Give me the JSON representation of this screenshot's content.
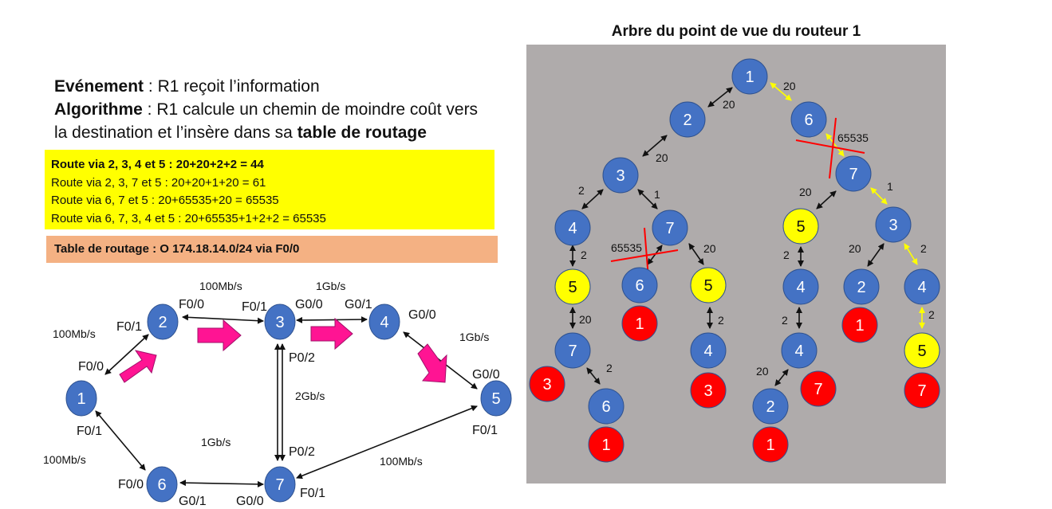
{
  "event": {
    "label": "Evénement",
    "sep": " : ",
    "text": "R1 reçoit l’information"
  },
  "algorithm": {
    "label": "Algorithme",
    "sep": " : ",
    "text1": "R1 calcule un chemin de moindre coût vers",
    "text2": "la destination et l’insère dans sa ",
    "text2_bold": "table de routage"
  },
  "routes": [
    "Route via 2, 3, 4 et 5 : 20+20+2+2 = 44",
    "Route via 2, 3, 7 et 5 : 20+20+1+20 = 61",
    "Route via 6, 7 et 5 : 20+65535+20 = 65535",
    "Route via 6, 7, 3, 4 et 5 : 20+65535+1+2+2 = 65535"
  ],
  "routing_table": "Table de routage : O 174.18.14.0/24 via F0/0",
  "tree_title": "Arbre du point de vue du routeur 1",
  "colors": {
    "router_blue": "#4472c4",
    "highlight_yellow": "#ffff00",
    "destination_red": "#ff0000",
    "tree_bg": "#afabab",
    "routes_bg": "#ffff00",
    "table_bg": "#f4b183",
    "traffic_arrow": "#ff1493",
    "yellow_edge": "#ffff00",
    "cross": "#ff0000"
  },
  "network": {
    "routers": [
      "1",
      "2",
      "3",
      "4",
      "5",
      "6",
      "7"
    ],
    "links": [
      {
        "from": "1",
        "to": "2",
        "speed": "100Mb/s",
        "if_from": "F0/0",
        "if_to": "F0/1"
      },
      {
        "from": "2",
        "to": "3",
        "speed": "100Mb/s",
        "if_from": "F0/0",
        "if_to": "F0/1"
      },
      {
        "from": "3",
        "to": "4",
        "speed": "1Gb/s",
        "if_from": "G0/0",
        "if_to": "G0/1"
      },
      {
        "from": "4",
        "to": "5",
        "speed": "1Gb/s",
        "if_from": "G0/0",
        "if_to": "G0/0"
      },
      {
        "from": "3",
        "to": "7",
        "speed": "2Gb/s",
        "if_from": "P0/2",
        "if_to": "P0/2"
      },
      {
        "from": "7",
        "to": "5",
        "speed": "100Mb/s",
        "if_from": "F0/1",
        "if_to": "F0/1"
      },
      {
        "from": "1",
        "to": "6",
        "speed": "100Mb/s",
        "if_from": "F0/1",
        "if_to": "F0/0"
      },
      {
        "from": "6",
        "to": "7",
        "speed": "1Gb/s",
        "if_from": "G0/1",
        "if_to": "G0/0"
      }
    ]
  },
  "tree": {
    "nodes": [
      "1",
      "6",
      "2",
      "7",
      "3",
      "5",
      "3",
      "4",
      "7",
      "4",
      "2",
      "4",
      "5",
      "6",
      "5",
      "1",
      "1",
      "5",
      "7",
      "4",
      "4",
      "3",
      "3",
      "7",
      "7",
      "6",
      "2",
      "1",
      "1"
    ],
    "edge_costs": [
      "20",
      "20",
      "65535",
      "20",
      "1",
      "20",
      "2",
      "1",
      "20",
      "2",
      "2",
      "65535",
      "20",
      "2",
      "20",
      "2",
      "2",
      "2",
      "2",
      "20"
    ]
  }
}
